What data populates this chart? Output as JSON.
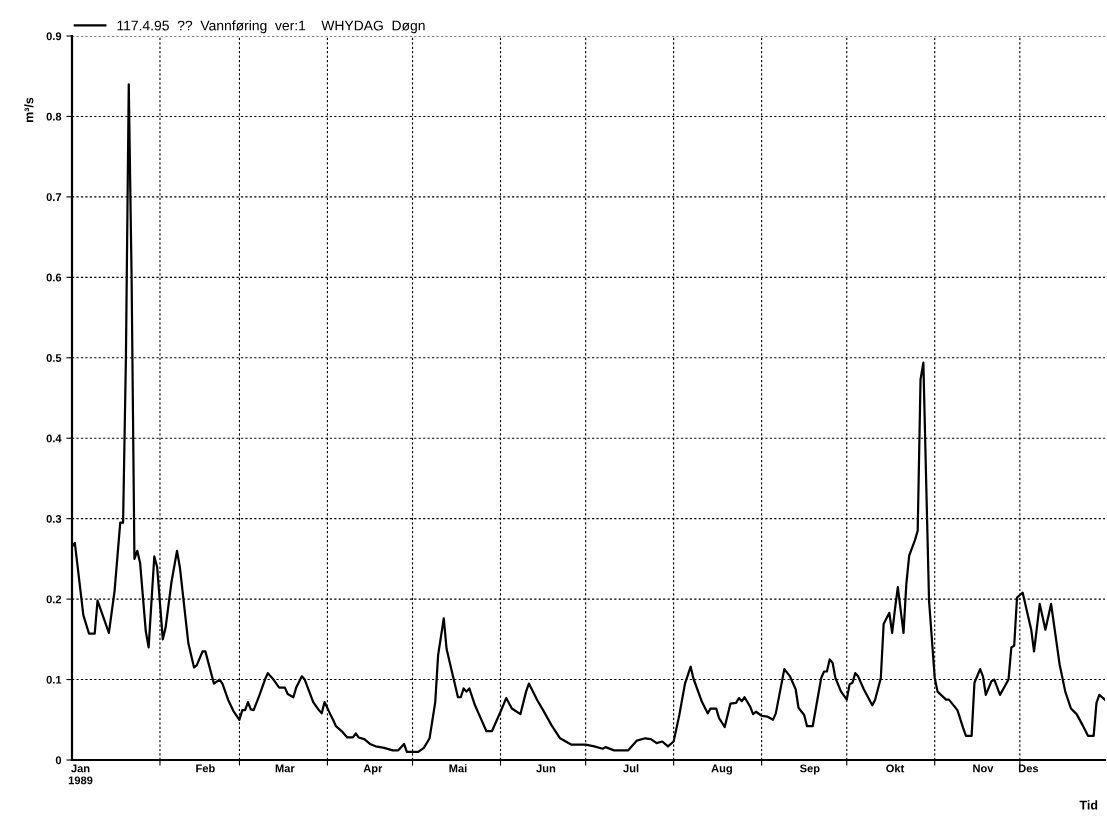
{
  "chart_data": {
    "type": "line",
    "ylabel": "m³/s",
    "xlabel": "Tid",
    "legend": "top left",
    "grid": true,
    "line_style": "solid",
    "xlim": [
      "1989-01-01",
      "1989-12-31"
    ],
    "ylim": [
      0,
      0.9
    ],
    "yticks": [
      0,
      0.1,
      0.2,
      0.3,
      0.4,
      0.5,
      0.6,
      0.7,
      0.8,
      0.9
    ],
    "xticks": [
      {
        "value": "1989-02-01",
        "label": null
      },
      {
        "value": "1989-03-01",
        "label": null
      },
      {
        "value": "1989-04-01",
        "label": null
      },
      {
        "value": "1989-05-01",
        "label": null
      },
      {
        "value": "1989-06-01",
        "label": null
      },
      {
        "value": "1989-07-01",
        "label": null
      },
      {
        "value": "1989-08-01",
        "label": null
      },
      {
        "value": "1989-09-01",
        "label": null
      },
      {
        "value": "1989-10-01",
        "label": null
      },
      {
        "value": "1989-11-01",
        "label": null
      },
      {
        "value": "1989-12-01",
        "label": null
      },
      {
        "value": "1989-01-04",
        "label": "Jan\n1989"
      },
      {
        "value": "1989-02-17",
        "label": "Feb"
      },
      {
        "value": "1989-03-17",
        "label": "Mar"
      },
      {
        "value": "1989-04-17",
        "label": "Apr"
      },
      {
        "value": "1989-05-17",
        "label": "Mai"
      },
      {
        "value": "1989-06-17",
        "label": "Jun"
      },
      {
        "value": "1989-07-17",
        "label": "Jul"
      },
      {
        "value": "1989-08-18",
        "label": "Aug"
      },
      {
        "value": "1989-09-18",
        "label": "Sep"
      },
      {
        "value": "1989-10-18",
        "label": "Okt"
      },
      {
        "value": "1989-11-18",
        "label": "Nov"
      },
      {
        "value": "1989-12-04",
        "label": "Des"
      }
    ],
    "series": [
      {
        "name": "117.4.95  ??  Vannføring  ver:1    WHYDAG  Døgn",
        "color": "#000000",
        "x": [
          "1989-01-01",
          "1989-01-02",
          "1989-01-05",
          "1989-01-07",
          "1989-01-09",
          "1989-01-10",
          "1989-01-14",
          "1989-01-16",
          "1989-01-18",
          "1989-01-19",
          "1989-01-20",
          "1989-01-21",
          "1989-01-22",
          "1989-01-23",
          "1989-01-24",
          "1989-01-25",
          "1989-01-27",
          "1989-01-28",
          "1989-01-30",
          "1989-01-31",
          "1989-02-02",
          "1989-02-03",
          "1989-02-05",
          "1989-02-07",
          "1989-02-08",
          "1989-02-11",
          "1989-02-13",
          "1989-02-14",
          "1989-02-16",
          "1989-02-17",
          "1989-02-20",
          "1989-02-22",
          "1989-02-23",
          "1989-02-25",
          "1989-02-27",
          "1989-03-01",
          "1989-03-02",
          "1989-03-03",
          "1989-03-04",
          "1989-03-05",
          "1989-03-06",
          "1989-03-08",
          "1989-03-10",
          "1989-03-11",
          "1989-03-13",
          "1989-03-15",
          "1989-03-17",
          "1989-03-18",
          "1989-03-20",
          "1989-03-21",
          "1989-03-23",
          "1989-03-24",
          "1989-03-27",
          "1989-03-29",
          "1989-03-30",
          "1989-03-31",
          "1989-04-02",
          "1989-04-03",
          "1989-04-04",
          "1989-04-06",
          "1989-04-08",
          "1989-04-10",
          "1989-04-11",
          "1989-04-12",
          "1989-04-14",
          "1989-04-16",
          "1989-04-18",
          "1989-04-21",
          "1989-04-24",
          "1989-04-26",
          "1989-04-28",
          "1989-04-29",
          "1989-05-01",
          "1989-05-03",
          "1989-05-05",
          "1989-05-07",
          "1989-05-09",
          "1989-05-10",
          "1989-05-12",
          "1989-05-13",
          "1989-05-16",
          "1989-05-17",
          "1989-05-18",
          "1989-05-19",
          "1989-05-20",
          "1989-05-21",
          "1989-05-23",
          "1989-05-25",
          "1989-05-27",
          "1989-05-29",
          "1989-06-01",
          "1989-06-03",
          "1989-06-05",
          "1989-06-08",
          "1989-06-10",
          "1989-06-11",
          "1989-06-14",
          "1989-06-16",
          "1989-06-19",
          "1989-06-22",
          "1989-06-26",
          "1989-07-01",
          "1989-07-04",
          "1989-07-07",
          "1989-07-08",
          "1989-07-11",
          "1989-07-16",
          "1989-07-19",
          "1989-07-22",
          "1989-07-24",
          "1989-07-26",
          "1989-07-28",
          "1989-07-30",
          "1989-08-01",
          "1989-08-03",
          "1989-08-05",
          "1989-08-07",
          "1989-08-08",
          "1989-08-11",
          "1989-08-13",
          "1989-08-14",
          "1989-08-16",
          "1989-08-17",
          "1989-08-19",
          "1989-08-21",
          "1989-08-23",
          "1989-08-24",
          "1989-08-25",
          "1989-08-26",
          "1989-08-28",
          "1989-08-29",
          "1989-08-30",
          "1989-09-01",
          "1989-09-03",
          "1989-09-05",
          "1989-09-06",
          "1989-09-09",
          "1989-09-11",
          "1989-09-13",
          "1989-09-14",
          "1989-09-16",
          "1989-09-17",
          "1989-09-19",
          "1989-09-22",
          "1989-09-23",
          "1989-09-24",
          "1989-09-25",
          "1989-09-26",
          "1989-09-27",
          "1989-09-29",
          "1989-10-01",
          "1989-10-02",
          "1989-10-03",
          "1989-10-04",
          "1989-10-05",
          "1989-10-07",
          "1989-10-10",
          "1989-10-11",
          "1989-10-13",
          "1989-10-14",
          "1989-10-16",
          "1989-10-17",
          "1989-10-18",
          "1989-10-19",
          "1989-10-21",
          "1989-10-22",
          "1989-10-23",
          "1989-10-25",
          "1989-10-26",
          "1989-10-27",
          "1989-10-28",
          "1989-10-29",
          "1989-10-30",
          "1989-11-01",
          "1989-11-02",
          "1989-11-05",
          "1989-11-06",
          "1989-11-09",
          "1989-11-11",
          "1989-11-12",
          "1989-11-14",
          "1989-11-15",
          "1989-11-17",
          "1989-11-18",
          "1989-11-19",
          "1989-11-21",
          "1989-11-22",
          "1989-11-24",
          "1989-11-27",
          "1989-11-28",
          "1989-11-29",
          "1989-11-30",
          "1989-12-02",
          "1989-12-05",
          "1989-12-06",
          "1989-12-08",
          "1989-12-10",
          "1989-12-12",
          "1989-12-15",
          "1989-12-17",
          "1989-12-19",
          "1989-12-21",
          "1989-12-23",
          "1989-12-25",
          "1989-12-27",
          "1989-12-28",
          "1989-12-29",
          "1989-12-31"
        ],
        "values": [
          0.265,
          0.27,
          0.18,
          0.157,
          0.157,
          0.198,
          0.158,
          0.21,
          0.295,
          0.295,
          0.5,
          0.84,
          0.6,
          0.25,
          0.26,
          0.245,
          0.16,
          0.14,
          0.253,
          0.24,
          0.15,
          0.165,
          0.22,
          0.26,
          0.24,
          0.145,
          0.115,
          0.118,
          0.135,
          0.135,
          0.095,
          0.1,
          0.095,
          0.075,
          0.06,
          0.05,
          0.062,
          0.062,
          0.072,
          0.063,
          0.062,
          0.08,
          0.1,
          0.108,
          0.1,
          0.09,
          0.09,
          0.082,
          0.078,
          0.09,
          0.104,
          0.1,
          0.072,
          0.062,
          0.058,
          0.072,
          0.057,
          0.05,
          0.042,
          0.036,
          0.028,
          0.028,
          0.033,
          0.028,
          0.026,
          0.02,
          0.017,
          0.015,
          0.012,
          0.012,
          0.02,
          0.01,
          0.01,
          0.01,
          0.015,
          0.027,
          0.072,
          0.13,
          0.176,
          0.138,
          0.093,
          0.078,
          0.078,
          0.089,
          0.085,
          0.089,
          0.068,
          0.052,
          0.036,
          0.036,
          0.06,
          0.077,
          0.064,
          0.057,
          0.085,
          0.095,
          0.074,
          0.062,
          0.043,
          0.027,
          0.019,
          0.019,
          0.017,
          0.014,
          0.016,
          0.012,
          0.012,
          0.024,
          0.027,
          0.026,
          0.021,
          0.023,
          0.017,
          0.023,
          0.056,
          0.095,
          0.116,
          0.101,
          0.072,
          0.058,
          0.064,
          0.064,
          0.052,
          0.041,
          0.07,
          0.071,
          0.077,
          0.073,
          0.078,
          0.066,
          0.057,
          0.06,
          0.055,
          0.054,
          0.05,
          0.058,
          0.113,
          0.104,
          0.088,
          0.065,
          0.056,
          0.042,
          0.042,
          0.102,
          0.11,
          0.11,
          0.125,
          0.121,
          0.102,
          0.085,
          0.075,
          0.094,
          0.096,
          0.108,
          0.104,
          0.088,
          0.068,
          0.075,
          0.102,
          0.169,
          0.183,
          0.158,
          0.188,
          0.215,
          0.158,
          0.219,
          0.254,
          0.273,
          0.285,
          0.473,
          0.494,
          0.344,
          0.198,
          0.102,
          0.085,
          0.075,
          0.075,
          0.062,
          0.04,
          0.03,
          0.03,
          0.096,
          0.113,
          0.104,
          0.081,
          0.098,
          0.1,
          0.081,
          0.1,
          0.14,
          0.142,
          0.202,
          0.208,
          0.162,
          0.135,
          0.194,
          0.162,
          0.194,
          0.119,
          0.085,
          0.064,
          0.057,
          0.044,
          0.03,
          0.03,
          0.071,
          0.081,
          0.075
        ]
      }
    ]
  }
}
